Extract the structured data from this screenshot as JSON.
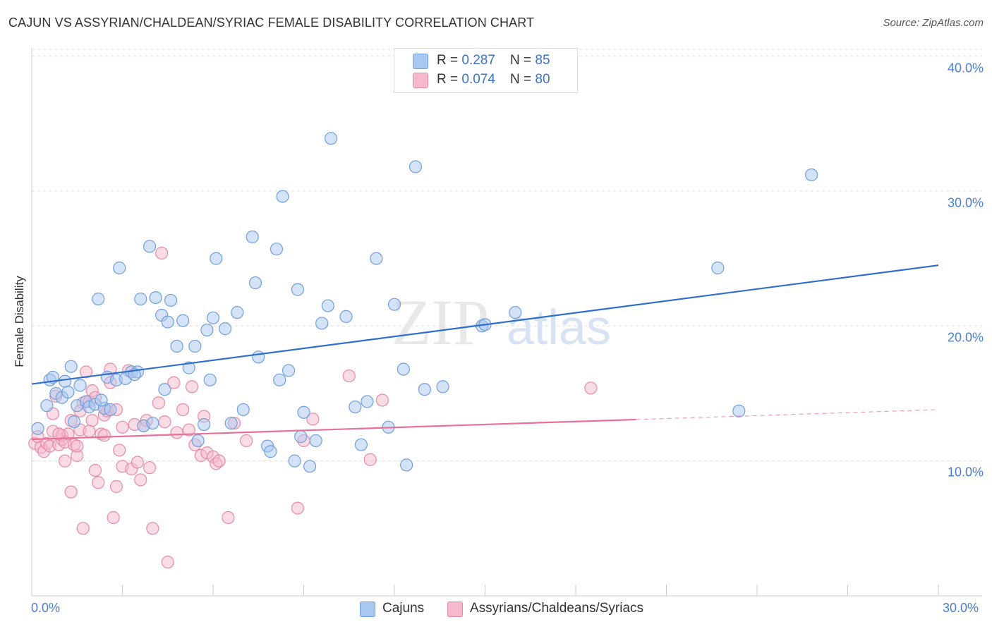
{
  "title": "CAJUN VS ASSYRIAN/CHALDEAN/SYRIAC FEMALE DISABILITY CORRELATION CHART",
  "source": "Source: ZipAtlas.com",
  "watermark": {
    "zip": "ZIP",
    "atlas": "atlas"
  },
  "legend": {
    "rows": [
      {
        "r_label": "R = ",
        "r_value": "0.287",
        "n_label": "N = ",
        "n_value": "85"
      },
      {
        "r_label": "R = ",
        "r_value": "0.074",
        "n_label": "N = ",
        "n_value": "80"
      }
    ]
  },
  "bottom_legend": [
    "Cajuns",
    "Assyrians/Chaldeans/Syriacs"
  ],
  "colors": {
    "blue_fill": "#a9c8f0",
    "blue_stroke": "#6f9fdd",
    "blue_line": "#2f6fcc",
    "pink_fill": "#f6b9cc",
    "pink_stroke": "#e88aa8",
    "pink_line": "#e8709a",
    "tick_text": "#4a7fcf",
    "grid": "#dddddd"
  },
  "chart_data": {
    "type": "scatter",
    "title": "CAJUN VS ASSYRIAN/CHALDEAN/SYRIAC FEMALE DISABILITY CORRELATION CHART",
    "xlabel": "",
    "ylabel": "Female Disability",
    "xlim": [
      0,
      30
    ],
    "ylim": [
      0,
      40.5
    ],
    "x_tick_labels": [
      "0.0%",
      "30.0%"
    ],
    "y_ticks": [
      10,
      20,
      30,
      40
    ],
    "y_tick_labels": [
      "10.0%",
      "20.0%",
      "30.0%",
      "40.0%"
    ],
    "grid": true,
    "legend_position": "top-center",
    "series": [
      {
        "name": "Cajuns",
        "R": 0.287,
        "N": 85,
        "trend": {
          "x0": 0,
          "y0": 15.7,
          "x1": 30,
          "y1": 24.5,
          "dashed_from": null
        },
        "points": [
          [
            0.2,
            12.4
          ],
          [
            0.5,
            14.1
          ],
          [
            0.6,
            16.0
          ],
          [
            0.7,
            16.2
          ],
          [
            0.8,
            15.0
          ],
          [
            1.0,
            14.7
          ],
          [
            1.1,
            15.9
          ],
          [
            1.3,
            17.0
          ],
          [
            1.4,
            12.9
          ],
          [
            1.5,
            14.1
          ],
          [
            1.6,
            15.6
          ],
          [
            1.8,
            14.4
          ],
          [
            1.9,
            14.0
          ],
          [
            2.1,
            14.2
          ],
          [
            2.2,
            22.0
          ],
          [
            2.4,
            13.9
          ],
          [
            2.5,
            16.2
          ],
          [
            2.6,
            13.8
          ],
          [
            2.8,
            16.0
          ],
          [
            2.9,
            24.3
          ],
          [
            3.1,
            16.1
          ],
          [
            3.3,
            16.6
          ],
          [
            3.5,
            16.6
          ],
          [
            3.6,
            22.0
          ],
          [
            3.7,
            12.6
          ],
          [
            3.9,
            25.9
          ],
          [
            4.0,
            12.8
          ],
          [
            4.1,
            22.1
          ],
          [
            4.3,
            20.8
          ],
          [
            4.4,
            15.3
          ],
          [
            4.5,
            20.3
          ],
          [
            4.6,
            21.9
          ],
          [
            4.8,
            18.5
          ],
          [
            5.0,
            20.4
          ],
          [
            5.2,
            16.9
          ],
          [
            5.4,
            18.5
          ],
          [
            5.5,
            11.5
          ],
          [
            5.7,
            12.7
          ],
          [
            5.8,
            19.7
          ],
          [
            6.0,
            20.6
          ],
          [
            6.1,
            25.0
          ],
          [
            6.4,
            19.8
          ],
          [
            6.6,
            12.8
          ],
          [
            6.8,
            21.0
          ],
          [
            7.0,
            13.8
          ],
          [
            7.3,
            26.6
          ],
          [
            7.4,
            23.2
          ],
          [
            7.5,
            17.7
          ],
          [
            7.8,
            11.1
          ],
          [
            7.9,
            10.7
          ],
          [
            8.1,
            25.7
          ],
          [
            8.2,
            16.0
          ],
          [
            8.3,
            29.6
          ],
          [
            8.5,
            16.7
          ],
          [
            8.7,
            10.0
          ],
          [
            8.8,
            22.7
          ],
          [
            8.9,
            11.8
          ],
          [
            9.2,
            9.6
          ],
          [
            9.4,
            11.5
          ],
          [
            9.6,
            20.2
          ],
          [
            9.8,
            21.5
          ],
          [
            9.9,
            33.9
          ],
          [
            10.4,
            20.7
          ],
          [
            10.7,
            14.0
          ],
          [
            10.9,
            11.2
          ],
          [
            11.1,
            14.4
          ],
          [
            11.4,
            25.0
          ],
          [
            11.8,
            12.5
          ],
          [
            12.0,
            21.6
          ],
          [
            12.3,
            16.8
          ],
          [
            12.4,
            9.7
          ],
          [
            12.7,
            31.8
          ],
          [
            13.0,
            15.3
          ],
          [
            13.6,
            15.5
          ],
          [
            14.9,
            20.0
          ],
          [
            15.0,
            20.1
          ],
          [
            16.0,
            21.0
          ],
          [
            22.7,
            24.3
          ],
          [
            23.4,
            13.7
          ],
          [
            25.8,
            31.2
          ],
          [
            2.3,
            14.5
          ],
          [
            3.4,
            16.4
          ],
          [
            5.9,
            16.0
          ],
          [
            9.0,
            13.6
          ],
          [
            1.2,
            15.1
          ]
        ]
      },
      {
        "name": "Assyrians/Chaldeans/Syriacs",
        "R": 0.074,
        "N": 80,
        "trend": {
          "x0": 0,
          "y0": 11.6,
          "x1": 30,
          "y1": 13.8,
          "dashed_from": 20.0
        },
        "points": [
          [
            0.1,
            11.3
          ],
          [
            0.2,
            11.8
          ],
          [
            0.3,
            11.0
          ],
          [
            0.4,
            10.7
          ],
          [
            0.5,
            11.3
          ],
          [
            0.6,
            11.1
          ],
          [
            0.7,
            12.2
          ],
          [
            0.7,
            13.5
          ],
          [
            0.8,
            14.8
          ],
          [
            0.9,
            11.2
          ],
          [
            1.0,
            11.6
          ],
          [
            1.0,
            11.9
          ],
          [
            1.1,
            11.4
          ],
          [
            1.1,
            10.0
          ],
          [
            1.2,
            12.0
          ],
          [
            1.3,
            13.0
          ],
          [
            1.3,
            7.7
          ],
          [
            1.4,
            11.2
          ],
          [
            1.5,
            10.4
          ],
          [
            1.5,
            11.1
          ],
          [
            1.6,
            12.3
          ],
          [
            1.7,
            5.0
          ],
          [
            1.7,
            14.3
          ],
          [
            1.8,
            16.6
          ],
          [
            1.9,
            14.4
          ],
          [
            2.0,
            13.0
          ],
          [
            2.0,
            15.2
          ],
          [
            2.1,
            14.7
          ],
          [
            2.1,
            9.3
          ],
          [
            2.2,
            8.4
          ],
          [
            2.3,
            12.0
          ],
          [
            2.4,
            13.4
          ],
          [
            2.5,
            13.7
          ],
          [
            2.6,
            16.8
          ],
          [
            2.6,
            15.8
          ],
          [
            2.7,
            5.8
          ],
          [
            2.8,
            8.1
          ],
          [
            2.8,
            13.8
          ],
          [
            3.0,
            12.5
          ],
          [
            3.0,
            9.6
          ],
          [
            3.2,
            16.7
          ],
          [
            3.3,
            9.4
          ],
          [
            3.4,
            12.7
          ],
          [
            3.5,
            9.9
          ],
          [
            3.6,
            8.6
          ],
          [
            3.7,
            12.6
          ],
          [
            3.9,
            9.5
          ],
          [
            4.0,
            5.0
          ],
          [
            4.2,
            14.3
          ],
          [
            4.3,
            25.4
          ],
          [
            4.4,
            12.9
          ],
          [
            4.5,
            2.5
          ],
          [
            4.7,
            15.8
          ],
          [
            5.0,
            13.8
          ],
          [
            5.2,
            12.3
          ],
          [
            5.3,
            15.5
          ],
          [
            5.6,
            10.4
          ],
          [
            5.7,
            13.3
          ],
          [
            5.8,
            10.6
          ],
          [
            6.0,
            10.3
          ],
          [
            6.1,
            9.8
          ],
          [
            6.5,
            5.8
          ],
          [
            6.7,
            12.8
          ],
          [
            7.1,
            11.5
          ],
          [
            8.8,
            6.5
          ],
          [
            9.0,
            11.5
          ],
          [
            9.3,
            13.1
          ],
          [
            10.5,
            16.3
          ],
          [
            11.2,
            10.1
          ],
          [
            11.6,
            14.5
          ],
          [
            18.5,
            15.4
          ],
          [
            1.9,
            12.2
          ],
          [
            2.4,
            11.9
          ],
          [
            0.9,
            12.0
          ],
          [
            3.8,
            13.0
          ],
          [
            5.4,
            11.2
          ],
          [
            6.2,
            10.0
          ],
          [
            4.8,
            12.1
          ],
          [
            2.9,
            10.8
          ],
          [
            1.6,
            13.7
          ]
        ]
      }
    ]
  }
}
